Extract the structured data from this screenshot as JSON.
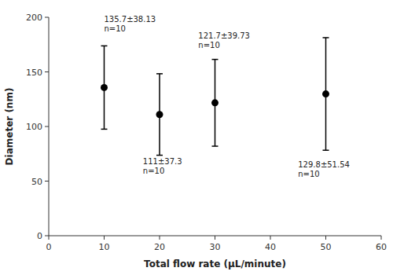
{
  "chart_data": {
    "type": "errorbar",
    "x": [
      10,
      20,
      30,
      50
    ],
    "values": [
      135.7,
      111.0,
      121.7,
      129.8
    ],
    "errors": [
      38.13,
      37.3,
      39.73,
      51.54
    ],
    "annotations": [
      {
        "text": "135.7±38.13\nn=10",
        "x": 10,
        "y": 185
      },
      {
        "text": "111±37.3\nn=10",
        "x": 17,
        "y": 55
      },
      {
        "text": "121.7±39.73\nn=10",
        "x": 27,
        "y": 170
      },
      {
        "text": "129.8±51.54\nn=10",
        "x": 45,
        "y": 52
      }
    ],
    "xlabel": "Total flow rate (μL/minute)",
    "ylabel": "Diameter (nm)",
    "xlim": [
      0,
      60
    ],
    "ylim": [
      0,
      200
    ],
    "xticks": [
      0,
      10,
      20,
      30,
      40,
      50,
      60
    ],
    "yticks": [
      0,
      50,
      100,
      150,
      200
    ],
    "color": "black",
    "marker": "circle",
    "grid": false
  }
}
